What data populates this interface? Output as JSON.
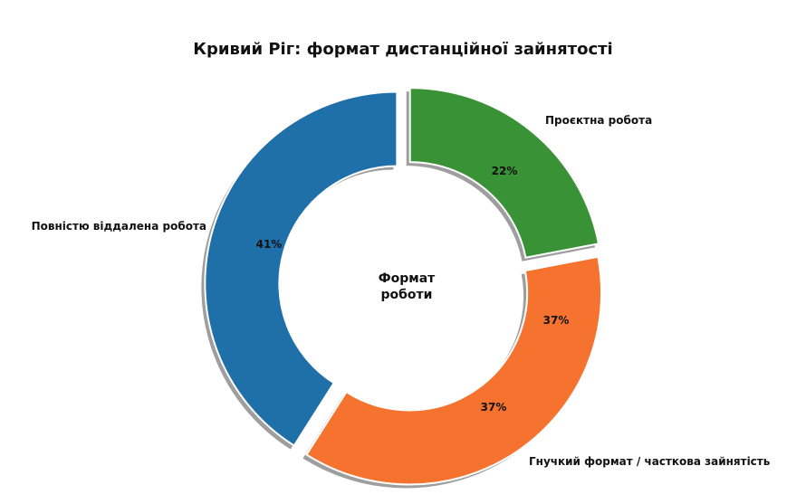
{
  "chart_data": {
    "type": "pie",
    "subtype": "donut",
    "title": "Кривий Ріг: формат дистанційної зайнятості",
    "center_label": [
      "Формат",
      "роботи"
    ],
    "categories": [
      "Повністю віддалена робота",
      "Гнучкий формат / часткова зайнятість",
      "Проєктна робота"
    ],
    "values": [
      41,
      37,
      22
    ],
    "value_labels": [
      "41%",
      "37%",
      "22%"
    ],
    "extra_value_labels": [
      {
        "category": "Гнучкий формат / часткова зайнятість",
        "text": "37%"
      }
    ],
    "colors": [
      "#1f6fa8",
      "#f5732f",
      "#3a9237"
    ],
    "start_angle": 90,
    "direction": "counterclockwise",
    "exploded": true,
    "shadow": true,
    "legend": "none"
  }
}
